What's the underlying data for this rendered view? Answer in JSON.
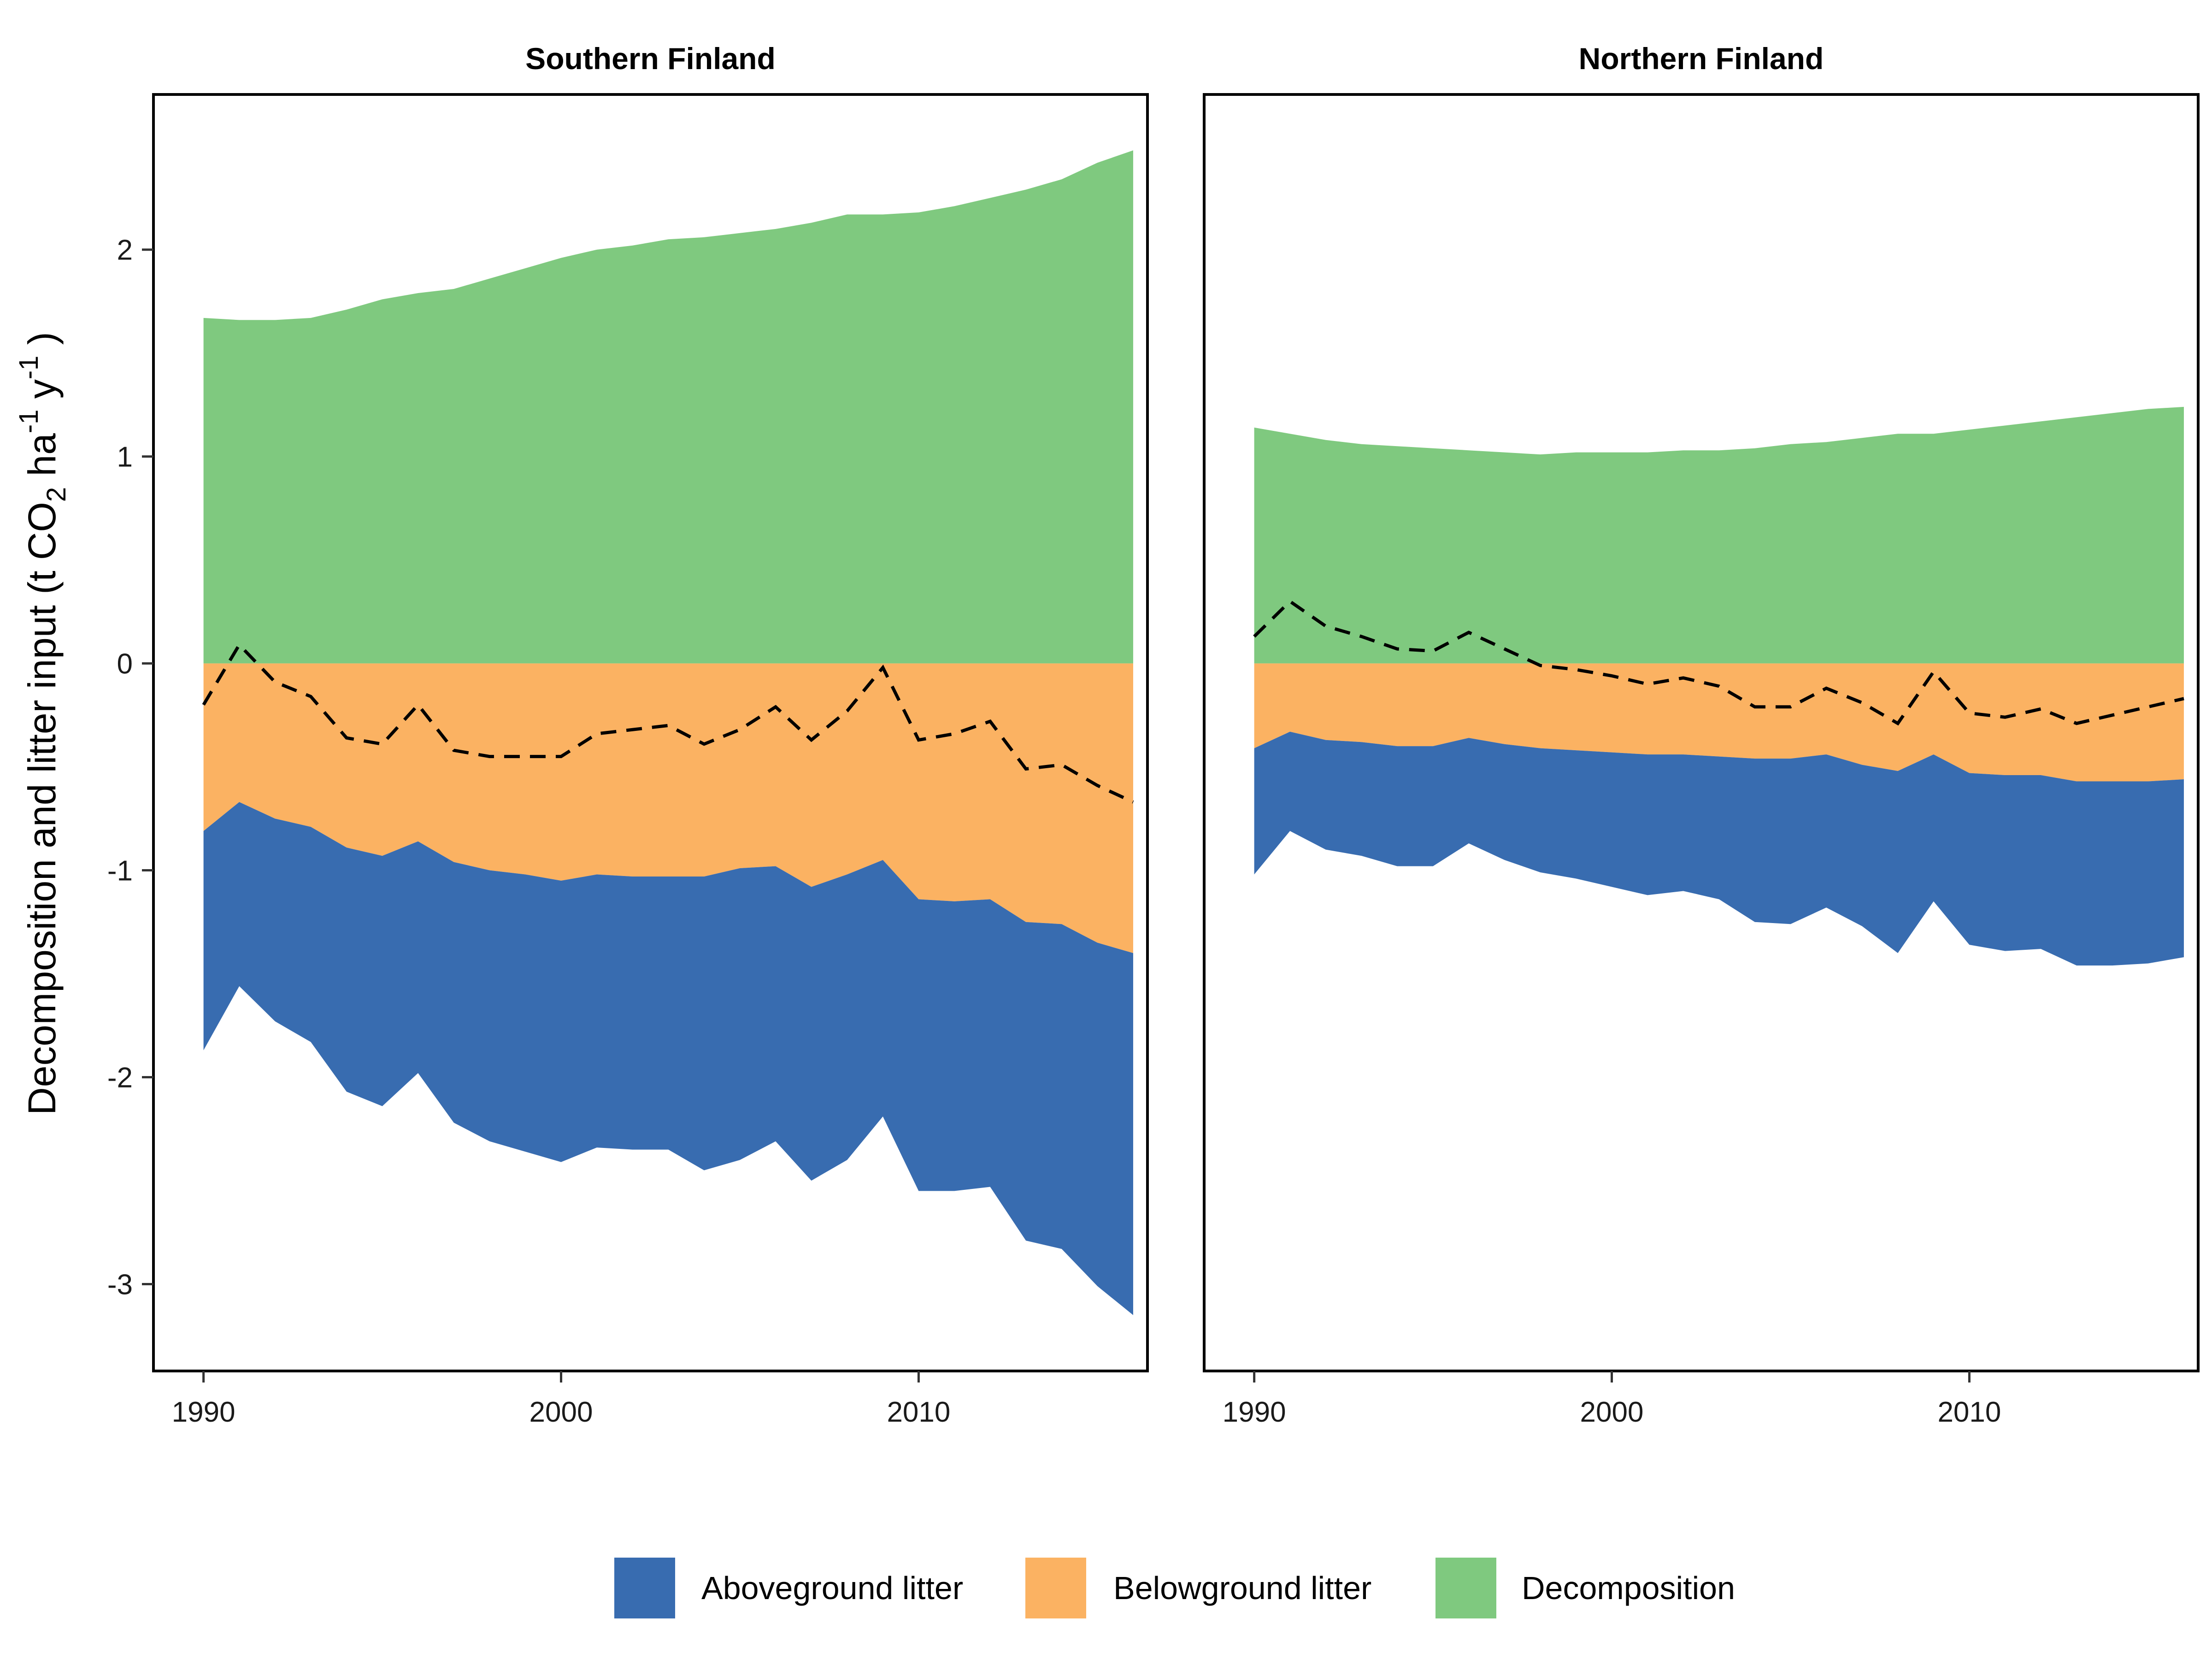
{
  "colors": {
    "aboveground": "#386CB0",
    "belowground": "#FBB262",
    "decomposition": "#7FC97F",
    "net_line": "#000000"
  },
  "legend": {
    "aboveground_label": "Aboveground litter",
    "belowground_label": "Belowground litter",
    "decomposition_label": "Decomposition"
  },
  "axis": {
    "ylabel_main": "Decomposition and litter input (t  CO",
    "ylabel_sub2": "2",
    "ylabel_ha": "  ha",
    "ylabel_sup1": "-1",
    "ylabel_y": "  y",
    "ylabel_sup2": "-1",
    "ylabel_close": " )"
  },
  "chart_data": [
    {
      "type": "area",
      "title": "Southern Finland",
      "xlim": [
        1988.6,
        2016.4
      ],
      "ylim": [
        -3.42,
        2.75
      ],
      "xticks": [
        1990,
        2000,
        2010
      ],
      "yticks": [
        -3,
        -2,
        -1,
        0,
        1,
        2
      ],
      "x": [
        1990,
        1991,
        1992,
        1993,
        1994,
        1995,
        1996,
        1997,
        1998,
        1999,
        2000,
        2001,
        2002,
        2003,
        2004,
        2005,
        2006,
        2007,
        2008,
        2009,
        2010,
        2011,
        2012,
        2013,
        2014,
        2015,
        2016
      ],
      "series": [
        {
          "name": "Decomposition",
          "values": [
            1.67,
            1.66,
            1.66,
            1.67,
            1.71,
            1.76,
            1.79,
            1.81,
            1.86,
            1.91,
            1.96,
            2.0,
            2.02,
            2.05,
            2.06,
            2.08,
            2.1,
            2.13,
            2.17,
            2.17,
            2.18,
            2.21,
            2.25,
            2.29,
            2.34,
            2.42,
            2.48
          ]
        },
        {
          "name": "Belowground litter",
          "values": [
            -0.81,
            -0.67,
            -0.75,
            -0.79,
            -0.89,
            -0.93,
            -0.86,
            -0.96,
            -1.0,
            -1.02,
            -1.05,
            -1.02,
            -1.03,
            -1.03,
            -1.03,
            -0.99,
            -0.98,
            -1.08,
            -1.02,
            -0.95,
            -1.14,
            -1.15,
            -1.14,
            -1.25,
            -1.26,
            -1.35,
            -1.4
          ]
        },
        {
          "name": "Aboveground litter",
          "values": [
            -1.06,
            -0.89,
            -0.98,
            -1.04,
            -1.18,
            -1.21,
            -1.12,
            -1.26,
            -1.31,
            -1.34,
            -1.36,
            -1.32,
            -1.32,
            -1.32,
            -1.42,
            -1.41,
            -1.33,
            -1.42,
            -1.38,
            -1.24,
            -1.41,
            -1.4,
            -1.39,
            -1.54,
            -1.57,
            -1.66,
            -1.75
          ]
        },
        {
          "values": [
            -0.2,
            0.09,
            -0.09,
            -0.16,
            -0.36,
            -0.39,
            -0.2,
            -0.42,
            -0.45,
            -0.45,
            -0.45,
            -0.34,
            -0.32,
            -0.3,
            -0.39,
            -0.32,
            -0.21,
            -0.37,
            -0.23,
            -0.02,
            -0.37,
            -0.34,
            -0.28,
            -0.51,
            -0.49,
            -0.59,
            -0.67
          ]
        }
      ]
    },
    {
      "type": "area",
      "title": "Northern Finland",
      "xlim": [
        1988.6,
        2016.4
      ],
      "ylim": [
        -3.42,
        2.75
      ],
      "xticks": [
        1990,
        2000,
        2010
      ],
      "yticks": [
        -3,
        -2,
        -1,
        0,
        1,
        2
      ],
      "x": [
        1990,
        1991,
        1992,
        1993,
        1994,
        1995,
        1996,
        1997,
        1998,
        1999,
        2000,
        2001,
        2002,
        2003,
        2004,
        2005,
        2006,
        2007,
        2008,
        2009,
        2010,
        2011,
        2012,
        2013,
        2014,
        2015,
        2016
      ],
      "series": [
        {
          "name": "Decomposition",
          "values": [
            1.14,
            1.11,
            1.08,
            1.06,
            1.05,
            1.04,
            1.03,
            1.02,
            1.01,
            1.02,
            1.02,
            1.02,
            1.03,
            1.03,
            1.04,
            1.06,
            1.07,
            1.09,
            1.11,
            1.11,
            1.13,
            1.15,
            1.17,
            1.19,
            1.21,
            1.23,
            1.24
          ]
        },
        {
          "name": "Belowground litter",
          "values": [
            -0.41,
            -0.33,
            -0.37,
            -0.38,
            -0.4,
            -0.4,
            -0.36,
            -0.39,
            -0.41,
            -0.42,
            -0.43,
            -0.44,
            -0.44,
            -0.45,
            -0.46,
            -0.46,
            -0.44,
            -0.49,
            -0.52,
            -0.44,
            -0.53,
            -0.54,
            -0.54,
            -0.57,
            -0.57,
            -0.57,
            -0.56
          ]
        },
        {
          "name": "Aboveground litter",
          "values": [
            -0.61,
            -0.48,
            -0.53,
            -0.55,
            -0.58,
            -0.58,
            -0.51,
            -0.56,
            -0.6,
            -0.62,
            -0.65,
            -0.68,
            -0.66,
            -0.69,
            -0.79,
            -0.8,
            -0.74,
            -0.78,
            -0.88,
            -0.71,
            -0.83,
            -0.85,
            -0.84,
            -0.89,
            -0.89,
            -0.88,
            -0.86
          ]
        },
        {
          "values": [
            0.13,
            0.3,
            0.18,
            0.13,
            0.07,
            0.06,
            0.15,
            0.07,
            -0.01,
            -0.03,
            -0.06,
            -0.1,
            -0.07,
            -0.11,
            -0.21,
            -0.21,
            -0.12,
            -0.19,
            -0.29,
            -0.04,
            -0.24,
            -0.26,
            -0.22,
            -0.29,
            -0.25,
            -0.21,
            -0.17
          ]
        }
      ]
    }
  ]
}
